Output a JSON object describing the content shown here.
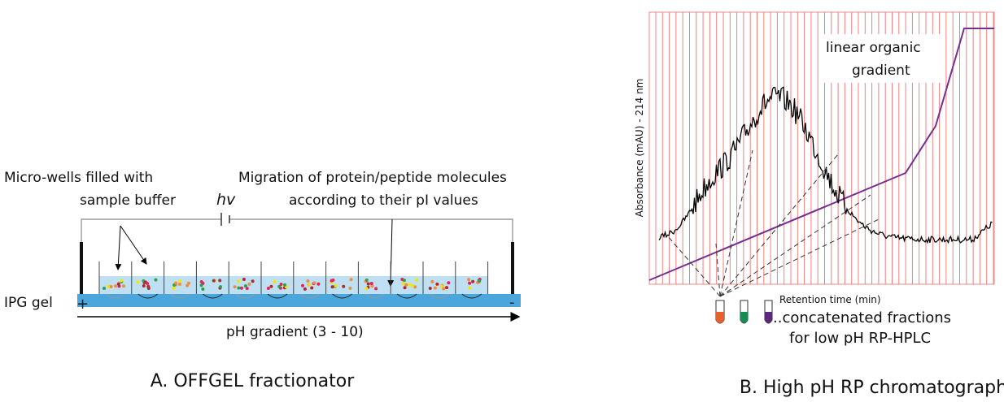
{
  "panel_a": {
    "labels": {
      "wells": [
        "Micro-wells filled with",
        "sample buffer"
      ],
      "hv": "hv",
      "migration": [
        "Migration of protein/peptide molecules",
        "according to their pI values"
      ],
      "gel": "IPG gel",
      "anode": "+",
      "cathode": "-",
      "gradient": "pH gradient (3 - 10)"
    },
    "caption": "A. OFFGEL fractionator"
  },
  "panel_b": {
    "labels": {
      "organic": [
        "linear organic",
        "gradient"
      ],
      "y_axis": "Absorbance (mAU) - 214 nm",
      "x_axis": "Retention time (min)",
      "fractions": [
        "..concatenated fractions",
        "for low pH RP-HPLC"
      ]
    },
    "caption": "B. High pH RP chromatography"
  }
}
